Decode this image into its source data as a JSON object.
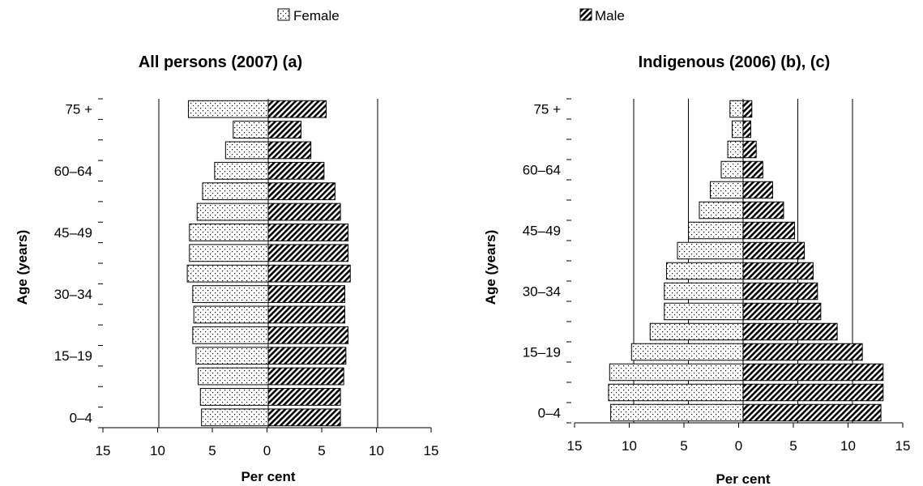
{
  "legend": [
    {
      "label": "Female",
      "pattern": "dots"
    },
    {
      "label": "Male",
      "pattern": "hatch"
    }
  ],
  "chart_data": [
    {
      "type": "bar",
      "orientation": "horizontal-population-pyramid",
      "title": "All persons (2007) (a)",
      "xlabel": "Per cent",
      "ylabel": "Age (years)",
      "xlim": [
        -15,
        15
      ],
      "x_ticks": [
        "15",
        "10",
        "5",
        "0",
        "5",
        "10",
        "15"
      ],
      "y_tick_labels": [
        "0–4",
        "15–19",
        "30–34",
        "45–49",
        "60–64",
        "75 +"
      ],
      "gridlines_x": [
        -10,
        10
      ],
      "categories": [
        "0–4",
        "5–9",
        "10–14",
        "15–19",
        "20–24",
        "25–29",
        "30–34",
        "35–39",
        "40–44",
        "45–49",
        "50–54",
        "55–59",
        "60–64",
        "65–69",
        "70–74",
        "75 +"
      ],
      "series": [
        {
          "name": "Female",
          "values": [
            6.1,
            6.2,
            6.4,
            6.6,
            6.9,
            6.8,
            6.9,
            7.4,
            7.2,
            7.2,
            6.5,
            6.0,
            4.9,
            3.9,
            3.2,
            7.3
          ]
        },
        {
          "name": "Male",
          "values": [
            6.6,
            6.6,
            6.9,
            7.1,
            7.3,
            7.0,
            7.0,
            7.5,
            7.3,
            7.3,
            6.6,
            6.1,
            5.1,
            3.9,
            3.0,
            5.3
          ]
        }
      ]
    },
    {
      "type": "bar",
      "orientation": "horizontal-population-pyramid",
      "title": "Indigenous (2006) (b), (c)",
      "xlabel": "Per cent",
      "ylabel": "Age (years)",
      "xlim": [
        -15,
        15
      ],
      "x_ticks": [
        "15",
        "10",
        "5",
        "0",
        "5",
        "10",
        "15"
      ],
      "y_tick_labels": [
        "0–4",
        "15–19",
        "30–34",
        "45–49",
        "60–64",
        "75 +"
      ],
      "gridlines_x": [
        -10,
        -5,
        5,
        10
      ],
      "categories": [
        "0–4",
        "5–9",
        "10–14",
        "15–19",
        "20–24",
        "25–29",
        "30–34",
        "35–39",
        "40–44",
        "45–49",
        "50–54",
        "55–59",
        "60–64",
        "65–69",
        "70–74",
        "75 +"
      ],
      "series": [
        {
          "name": "Female",
          "values": [
            12.1,
            12.3,
            12.2,
            10.2,
            8.5,
            7.2,
            7.2,
            7.0,
            6.0,
            5.0,
            4.0,
            3.0,
            2.0,
            1.4,
            1.0,
            1.2
          ]
        },
        {
          "name": "Male",
          "values": [
            12.6,
            12.8,
            12.8,
            10.9,
            8.6,
            7.1,
            6.8,
            6.4,
            5.6,
            4.7,
            3.7,
            2.7,
            1.8,
            1.2,
            0.7,
            0.8
          ]
        }
      ]
    }
  ]
}
